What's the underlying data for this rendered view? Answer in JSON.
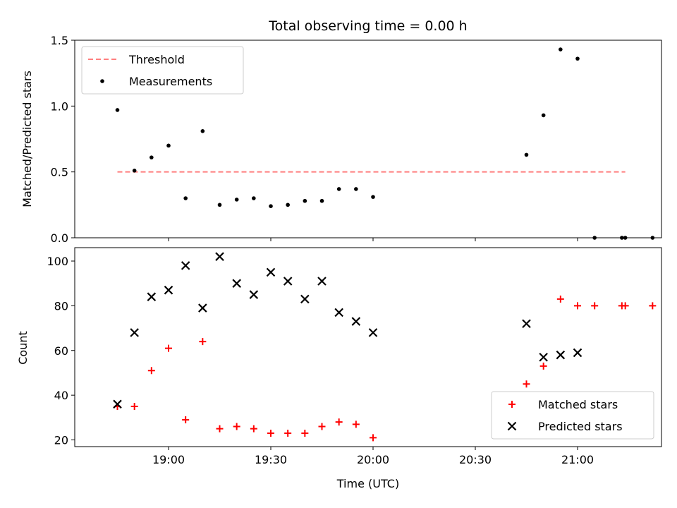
{
  "chart_data": [
    {
      "type": "scatter",
      "title": "Total observing time = 0.00 h",
      "xlabel": "",
      "ylabel": "Matched/Predicted stars",
      "ylim": [
        0,
        1.5
      ],
      "yticks": [
        "0.0",
        "0.5",
        "1.0",
        "1.5"
      ],
      "x_tick_labels_shown": false,
      "legend": {
        "placement": "top-left",
        "entries": [
          "Threshold",
          "Measurements"
        ]
      },
      "series": [
        {
          "name": "Threshold",
          "kind": "dashed-line",
          "color": "#ff7f7f",
          "points": [
            [
              "18:45",
              0.5
            ],
            [
              "21:14",
              0.5
            ]
          ]
        },
        {
          "name": "Measurements",
          "kind": "dot",
          "color": "#000000",
          "points": [
            [
              "18:45",
              0.97
            ],
            [
              "18:50",
              0.51
            ],
            [
              "18:55",
              0.61
            ],
            [
              "19:00",
              0.7
            ],
            [
              "19:05",
              0.3
            ],
            [
              "19:10",
              0.81
            ],
            [
              "19:15",
              0.25
            ],
            [
              "19:20",
              0.29
            ],
            [
              "19:25",
              0.3
            ],
            [
              "19:30",
              0.24
            ],
            [
              "19:35",
              0.25
            ],
            [
              "19:40",
              0.28
            ],
            [
              "19:45",
              0.28
            ],
            [
              "19:50",
              0.37
            ],
            [
              "19:55",
              0.37
            ],
            [
              "20:00",
              0.31
            ],
            [
              "20:45",
              0.63
            ],
            [
              "20:50",
              0.93
            ],
            [
              "20:55",
              1.43
            ],
            [
              "21:00",
              1.36
            ],
            [
              "21:05",
              0.0
            ],
            [
              "21:13",
              0.0
            ],
            [
              "21:14",
              0.0
            ],
            [
              "21:22",
              0.0
            ]
          ]
        }
      ]
    },
    {
      "type": "scatter",
      "title": "",
      "xlabel": "Time (UTC)",
      "ylabel": "Count",
      "ylim": [
        17,
        106
      ],
      "yticks": [
        "20",
        "40",
        "60",
        "80",
        "100"
      ],
      "xticks": [
        "19:00",
        "19:30",
        "20:00",
        "20:30",
        "21:00"
      ],
      "legend": {
        "placement": "bottom-right",
        "entries": [
          "Matched stars",
          "Predicted stars"
        ]
      },
      "series": [
        {
          "name": "Matched stars",
          "marker": "plus",
          "color": "#ff0000",
          "points": [
            [
              "18:45",
              35
            ],
            [
              "18:50",
              35
            ],
            [
              "18:55",
              51
            ],
            [
              "19:00",
              61
            ],
            [
              "19:05",
              29
            ],
            [
              "19:10",
              64
            ],
            [
              "19:15",
              25
            ],
            [
              "19:20",
              26
            ],
            [
              "19:25",
              25
            ],
            [
              "19:30",
              23
            ],
            [
              "19:35",
              23
            ],
            [
              "19:40",
              23
            ],
            [
              "19:45",
              26
            ],
            [
              "19:50",
              28
            ],
            [
              "19:55",
              27
            ],
            [
              "20:00",
              21
            ],
            [
              "20:45",
              45
            ],
            [
              "20:50",
              53
            ],
            [
              "20:55",
              83
            ],
            [
              "21:00",
              80
            ],
            [
              "21:05",
              80
            ],
            [
              "21:13",
              80
            ],
            [
              "21:14",
              80
            ],
            [
              "21:22",
              80
            ]
          ]
        },
        {
          "name": "Predicted stars",
          "marker": "x",
          "color": "#000000",
          "points": [
            [
              "18:45",
              36
            ],
            [
              "18:50",
              68
            ],
            [
              "18:55",
              84
            ],
            [
              "19:00",
              87
            ],
            [
              "19:05",
              98
            ],
            [
              "19:10",
              79
            ],
            [
              "19:15",
              102
            ],
            [
              "19:20",
              90
            ],
            [
              "19:25",
              85
            ],
            [
              "19:30",
              95
            ],
            [
              "19:35",
              91
            ],
            [
              "19:40",
              83
            ],
            [
              "19:45",
              91
            ],
            [
              "19:50",
              77
            ],
            [
              "19:55",
              73
            ],
            [
              "20:00",
              68
            ],
            [
              "20:45",
              72
            ],
            [
              "20:50",
              57
            ],
            [
              "20:55",
              58
            ],
            [
              "21:00",
              59
            ]
          ]
        }
      ]
    }
  ]
}
